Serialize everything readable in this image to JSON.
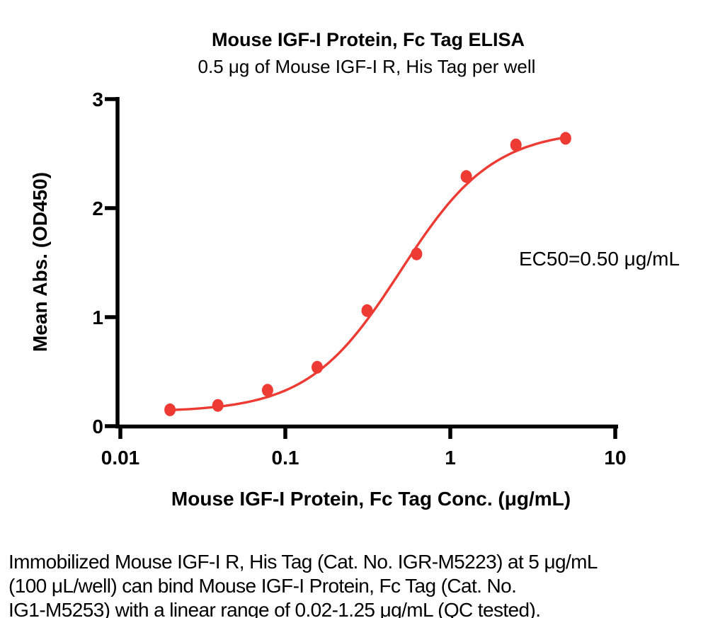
{
  "caption": {
    "lines": [
      "Immobilized Mouse IGF-I R, His Tag (Cat. No. IGR-M5223) at 5 μg/mL",
      "(100 μL/well) can bind Mouse IGF-I Protein, Fc Tag (Cat. No.",
      "IG1-M5253) with a linear range of 0.02-1.25 μg/mL (QC tested)."
    ]
  },
  "chart_data": {
    "type": "scatter",
    "title": "Mouse IGF-I Protein, Fc Tag ELISA",
    "subtitle": "0.5 μg of Mouse IGF-I R, His Tag per well",
    "xlabel": "Mouse IGF-I Protein, Fc Tag Conc. (μg/mL)",
    "ylabel": "Mean Abs. (OD450)",
    "annotation": "EC50=0.50 μg/mL",
    "x_scale": "log",
    "xlim": [
      0.01,
      10
    ],
    "ylim": [
      0,
      3
    ],
    "x_ticks": [
      0.01,
      0.1,
      1,
      10
    ],
    "x_tick_labels": [
      "0.01",
      "0.1",
      "1",
      "10"
    ],
    "y_ticks": [
      0,
      1,
      2,
      3
    ],
    "grid": false,
    "legend": null,
    "points": [
      {
        "x": 0.02,
        "y": 0.15
      },
      {
        "x": 0.039,
        "y": 0.19
      },
      {
        "x": 0.078,
        "y": 0.33
      },
      {
        "x": 0.156,
        "y": 0.54
      },
      {
        "x": 0.313,
        "y": 1.06
      },
      {
        "x": 0.625,
        "y": 1.58
      },
      {
        "x": 1.25,
        "y": 2.29
      },
      {
        "x": 2.5,
        "y": 2.58
      },
      {
        "x": 5,
        "y": 2.64
      }
    ],
    "fit": {
      "model": "4PL",
      "bottom": 0.13,
      "top": 2.72,
      "ec50": 0.5,
      "hill": 1.55
    },
    "colors": {
      "curve": "#ed3a33",
      "points": "#ed3a33",
      "axis": "#000000",
      "text": "#000000",
      "background": "#ffffff"
    }
  }
}
